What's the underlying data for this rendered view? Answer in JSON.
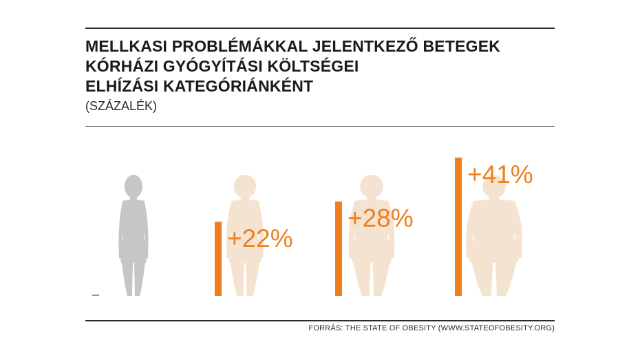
{
  "header": {
    "title_lines": [
      "MELLKASI PROBLÉMÁKKAL JELENTKEZŐ BETEGEK",
      "KÓRHÁZI GYÓGYÍTÁSI KÖLTSÉGEI",
      "ELHÍZÁSI KATEGÓRIÁNKÉNT"
    ],
    "subtitle": "(SZÁZALÉK)"
  },
  "footer": {
    "source": "FORRÁS: THE STATE OF OBESITY (WWW.STATEOFOBESITY.ORG)"
  },
  "colors": {
    "accent": "#ee7f1e",
    "baseline_figure": "#c6c6c6",
    "faded_figure": "#f5e3d2",
    "text": "#1a1a1a"
  },
  "chart_data": {
    "type": "bar",
    "title": "MELLKASI PROBLÉMÁKKAL JELENTKEZŐ BETEGEK KÓRHÁZI GYÓGYÍTÁSI KÖLTSÉGEI ELHÍZÁSI KATEGÓRIÁNKÉNT",
    "subtitle": "(SZÁZALÉK)",
    "values": [
      0,
      22,
      28,
      41
    ],
    "labels": [
      "",
      "+22%",
      "+28%",
      "+41%"
    ],
    "ylim": [
      0,
      41
    ],
    "grid": false,
    "legend": "none",
    "icons": [
      "person-normal-weight-icon",
      "person-overweight-icon",
      "person-obese-icon",
      "person-severely-obese-icon"
    ]
  }
}
